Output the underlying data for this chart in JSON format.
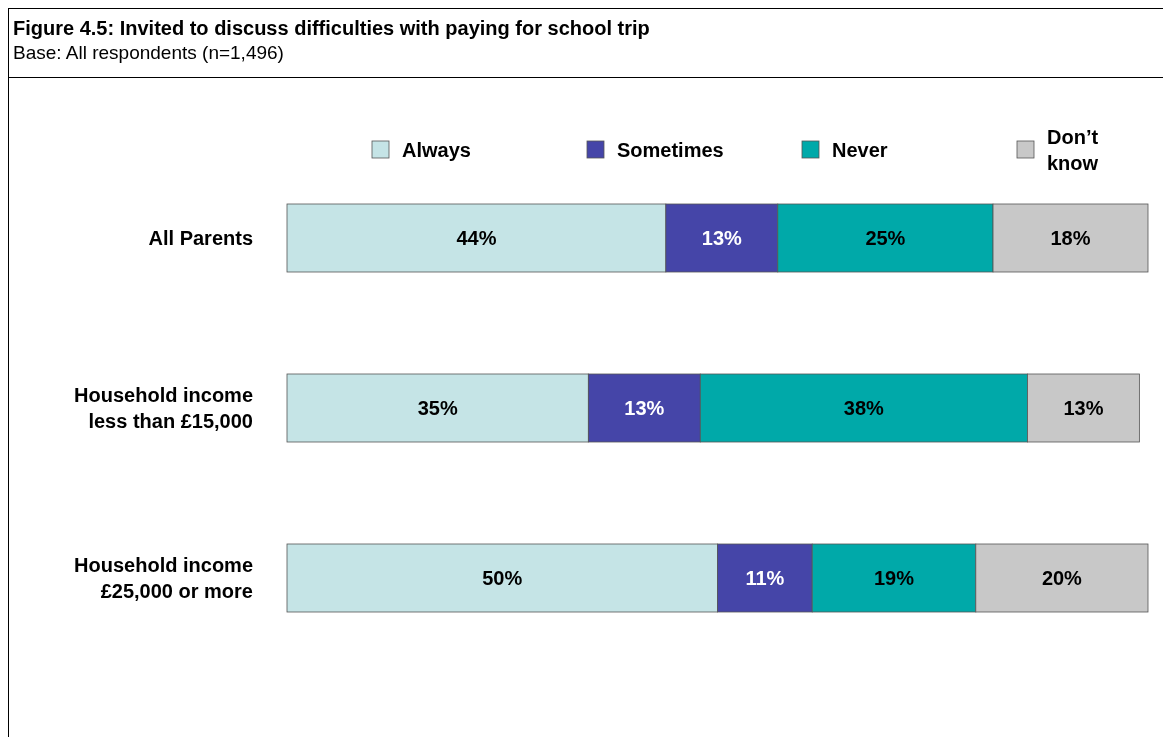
{
  "chart_data": {
    "type": "bar",
    "orientation": "horizontal",
    "stacked": true,
    "title": "Figure 4.5: Invited to discuss difficulties with paying for school trip",
    "subtitle": "Base: All respondents (n=1,496)",
    "categories": [
      "All Parents",
      "Household income less than £15,000",
      "Household income £25,000 or more"
    ],
    "series": [
      {
        "name": "Always",
        "color": "#c5e4e6",
        "values": [
          44,
          35,
          50
        ],
        "value_labels": [
          "44%",
          "35%",
          "50%"
        ]
      },
      {
        "name": "Sometimes",
        "color": "#4545a8",
        "values": [
          13,
          13,
          11
        ],
        "value_labels": [
          "13%",
          "13%",
          "11%"
        ]
      },
      {
        "name": "Never",
        "color": "#00a9a9",
        "values": [
          25,
          38,
          19
        ],
        "value_labels": [
          "25%",
          "38%",
          "19%"
        ]
      },
      {
        "name": "Don’t know",
        "color": "#c8c8c8",
        "values": [
          18,
          13,
          20
        ],
        "value_labels": [
          "18%",
          "13%",
          "20%"
        ]
      }
    ],
    "legend": "top",
    "grid": false
  }
}
